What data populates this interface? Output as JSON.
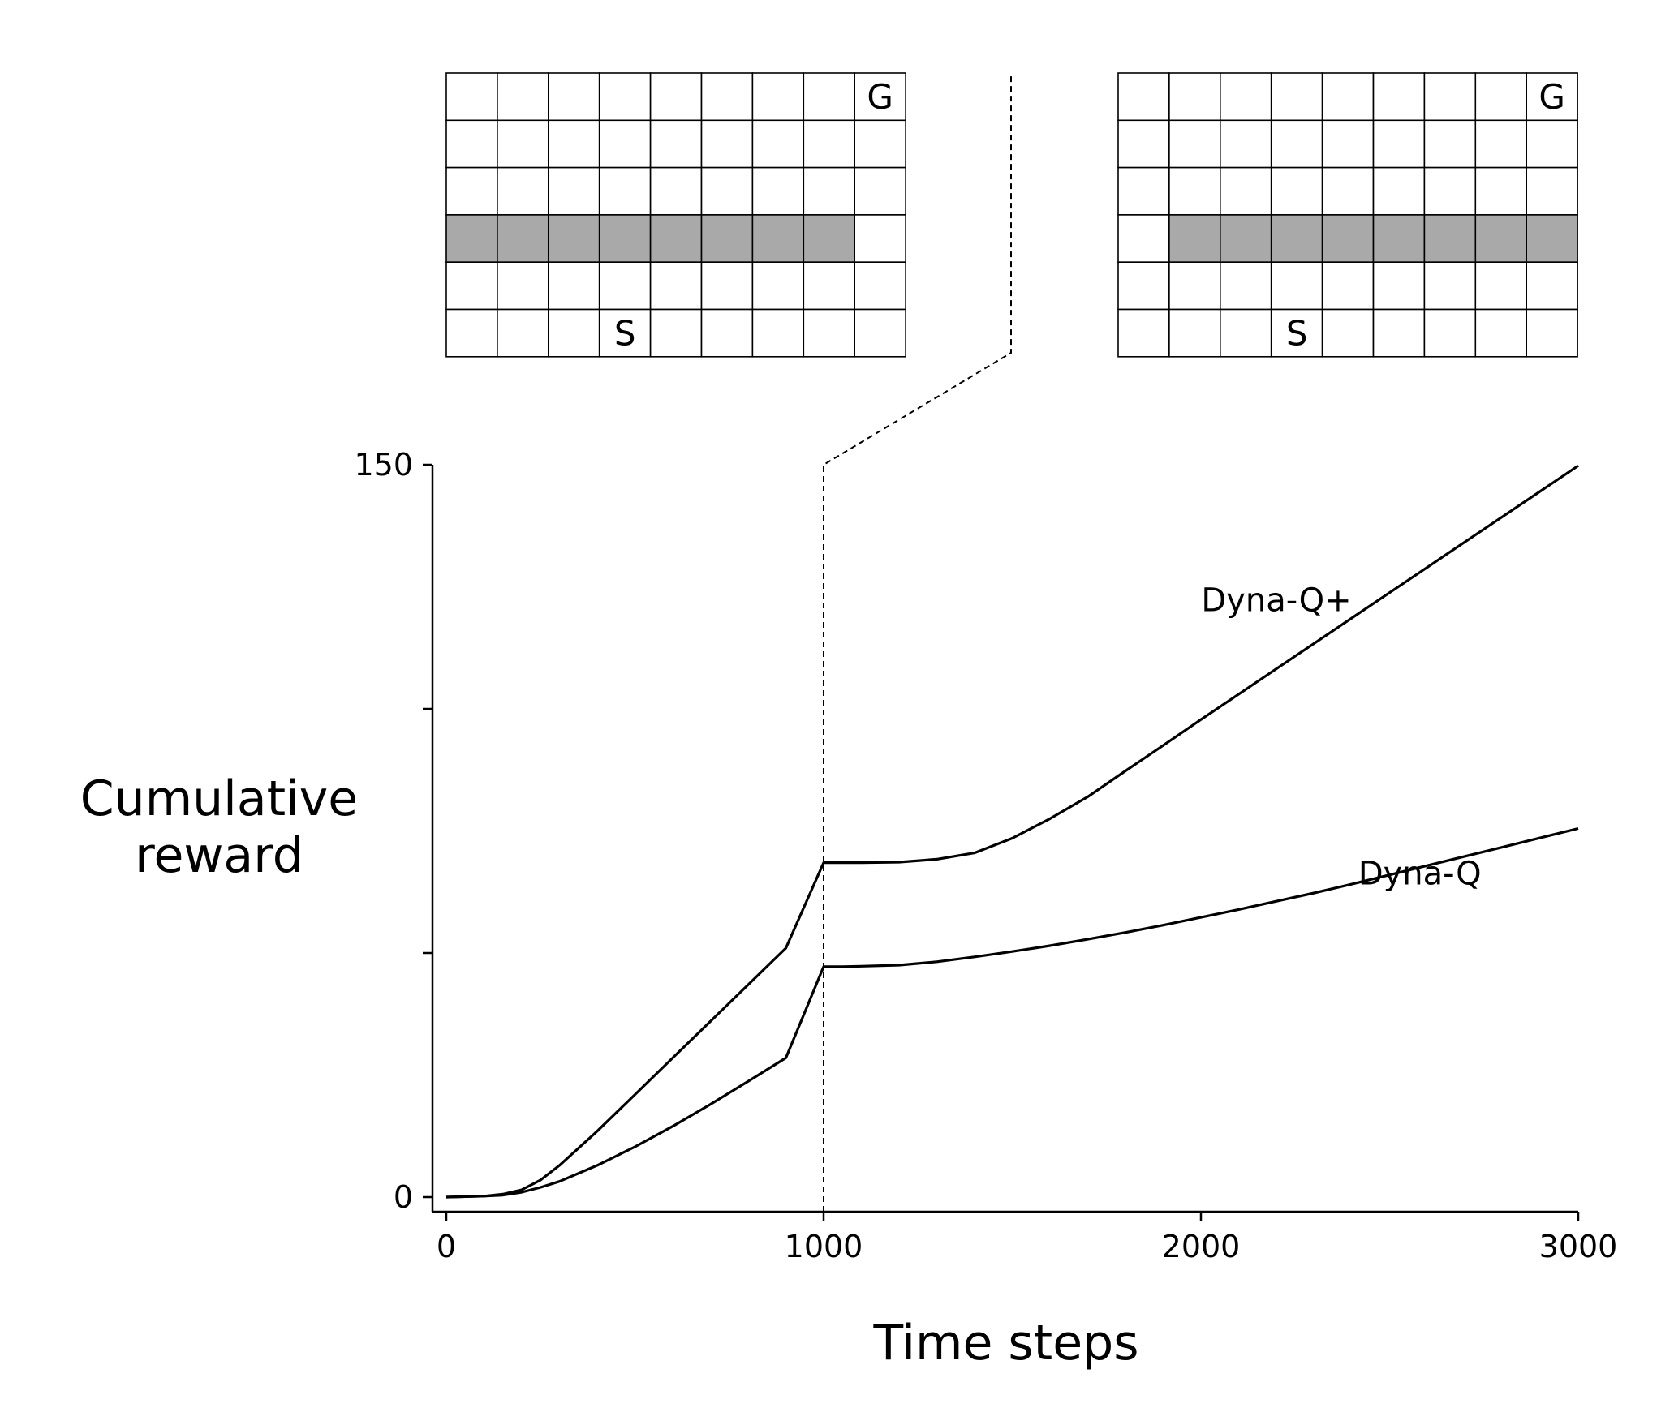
{
  "chart_data": {
    "type": "line",
    "xlabel": "Time steps",
    "ylabel_lines": [
      "Cumulative",
      "reward"
    ],
    "xlim": [
      0,
      3000
    ],
    "ylim": [
      0,
      150
    ],
    "x_ticks": [
      0,
      1000,
      2000,
      3000
    ],
    "y_ticks": [
      0,
      50,
      100,
      150
    ],
    "y_tick_labels": [
      "0",
      "",
      "",
      "150"
    ],
    "x_tick_labels": [
      "0",
      "1000",
      "2000",
      "3000"
    ],
    "grid": false,
    "change_point": 1000,
    "series": [
      {
        "name": "Dyna-Q+",
        "label_at": [
          2200,
          120
        ],
        "points": [
          [
            0,
            0
          ],
          [
            100,
            0.2
          ],
          [
            150,
            0.6
          ],
          [
            200,
            1.5
          ],
          [
            250,
            3.5
          ],
          [
            300,
            6.5
          ],
          [
            400,
            13.5
          ],
          [
            500,
            21
          ],
          [
            600,
            28.5
          ],
          [
            700,
            36
          ],
          [
            800,
            43.5
          ],
          [
            900,
            51
          ],
          [
            1000,
            68.5
          ],
          [
            1050,
            68.5
          ],
          [
            1100,
            68.5
          ],
          [
            1200,
            68.6
          ],
          [
            1300,
            69.2
          ],
          [
            1400,
            70.5
          ],
          [
            1500,
            73.5
          ],
          [
            1600,
            77.5
          ],
          [
            1700,
            82
          ],
          [
            1800,
            87.3
          ],
          [
            1900,
            92.5
          ],
          [
            2000,
            97.8
          ],
          [
            2100,
            103
          ],
          [
            2200,
            108.2
          ],
          [
            2300,
            113.4
          ],
          [
            2400,
            118.6
          ],
          [
            2500,
            123.8
          ],
          [
            2600,
            129
          ],
          [
            2700,
            134.2
          ],
          [
            2800,
            139.4
          ],
          [
            2900,
            144.6
          ],
          [
            3000,
            149.8
          ]
        ]
      },
      {
        "name": "Dyna-Q",
        "label_at": [
          2580,
          64
        ],
        "points": [
          [
            0,
            0
          ],
          [
            100,
            0.2
          ],
          [
            150,
            0.4
          ],
          [
            200,
            1
          ],
          [
            250,
            2
          ],
          [
            300,
            3.2
          ],
          [
            400,
            6.5
          ],
          [
            500,
            10.3
          ],
          [
            600,
            14.5
          ],
          [
            700,
            19
          ],
          [
            800,
            23.7
          ],
          [
            900,
            28.5
          ],
          [
            1000,
            47.2
          ],
          [
            1050,
            47.2
          ],
          [
            1100,
            47.3
          ],
          [
            1200,
            47.5
          ],
          [
            1300,
            48.2
          ],
          [
            1400,
            49.2
          ],
          [
            1500,
            50.3
          ],
          [
            1600,
            51.5
          ],
          [
            1700,
            52.8
          ],
          [
            1800,
            54.2
          ],
          [
            1900,
            55.7
          ],
          [
            2000,
            57.3
          ],
          [
            2100,
            58.9
          ],
          [
            2200,
            60.6
          ],
          [
            2300,
            62.3
          ],
          [
            2400,
            64.1
          ],
          [
            2500,
            66
          ],
          [
            2600,
            67.9
          ],
          [
            2700,
            69.8
          ],
          [
            2800,
            71.7
          ],
          [
            2900,
            73.6
          ],
          [
            3000,
            75.5
          ]
        ]
      }
    ],
    "mazes": [
      {
        "cols": 9,
        "rows": 6,
        "blocked_row": 3,
        "blocked_cols": [
          0,
          1,
          2,
          3,
          4,
          5,
          6,
          7
        ],
        "goal": {
          "row": 0,
          "col": 8,
          "label": "G"
        },
        "start": {
          "row": 5,
          "col": 3,
          "label": "S"
        },
        "blocked_color": "#a9a9a9"
      },
      {
        "cols": 9,
        "rows": 6,
        "blocked_row": 3,
        "blocked_cols": [
          1,
          2,
          3,
          4,
          5,
          6,
          7,
          8
        ],
        "goal": {
          "row": 0,
          "col": 8,
          "label": "G"
        },
        "start": {
          "row": 5,
          "col": 3,
          "label": "S"
        },
        "blocked_color": "#a9a9a9"
      }
    ]
  }
}
